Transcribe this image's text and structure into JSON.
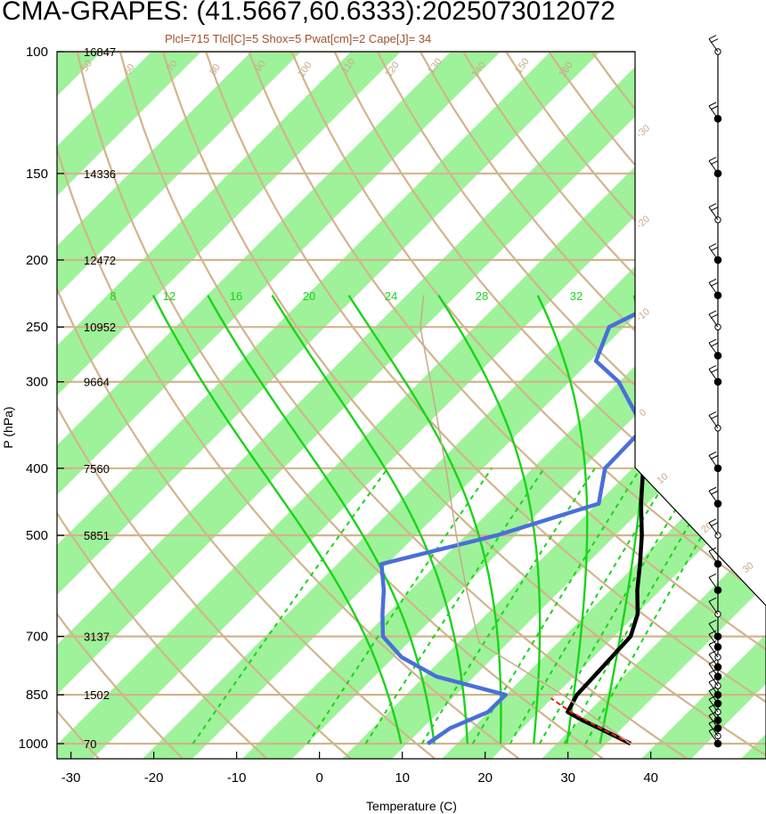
{
  "title": "CMA-GRAPES: (41.5667,60.6333):2025073012072",
  "subtitle": "Plcl=715 Tlcl[C]=5 Shox=5 Pwat[cm]=2 Cape[J]= 34",
  "chart_data": {
    "type": "skew-t log-p",
    "xlabel": "Temperature (C)",
    "ylabel": "P (hPa)",
    "xlim": [
      -33,
      52
    ],
    "ylim": [
      1050,
      100
    ],
    "y_scale": "log",
    "x_ticks": [
      "-30",
      "-20",
      "-10",
      "0",
      "10",
      "20",
      "30",
      "40"
    ],
    "pressure_levels": [
      {
        "p": 100,
        "label": "100",
        "height": "16847"
      },
      {
        "p": 150,
        "label": "150",
        "height": "14336"
      },
      {
        "p": 200,
        "label": "200",
        "height": "12472"
      },
      {
        "p": 250,
        "label": "250",
        "height": "10952"
      },
      {
        "p": 300,
        "label": "300",
        "height": "9664"
      },
      {
        "p": 400,
        "label": "400",
        "height": "7560"
      },
      {
        "p": 500,
        "label": "500",
        "height": "5851"
      },
      {
        "p": 700,
        "label": "700",
        "height": "3137"
      },
      {
        "p": 850,
        "label": "850",
        "height": "1502"
      },
      {
        "p": 1000,
        "label": "1000",
        "height": "70"
      }
    ],
    "series": [
      {
        "name": "",
        "color": "#000000",
        "points": [
          [
            1000,
            35.7
          ],
          [
            950,
            30.0
          ],
          [
            925,
            27.0
          ],
          [
            900,
            24.2
          ],
          [
            850,
            23.2
          ],
          [
            800,
            23.0
          ],
          [
            700,
            22.5
          ],
          [
            650,
            20.6
          ],
          [
            600,
            17.6
          ],
          [
            550,
            14.7
          ],
          [
            500,
            11.4
          ],
          [
            450,
            7.4
          ],
          [
            400,
            3.3
          ],
          [
            350,
            0.0
          ],
          [
            300,
            -3.1
          ],
          [
            275,
            -5.0
          ],
          [
            250,
            -7.2
          ],
          [
            225,
            -10.4
          ],
          [
            200,
            -14.3
          ],
          [
            175,
            -17.1
          ],
          [
            150,
            -19.2
          ],
          [
            125,
            -15.1
          ],
          [
            100,
            -11.2
          ]
        ]
      },
      {
        "name": "",
        "color": "#4a6fd8",
        "points": [
          [
            1000,
            11.2
          ],
          [
            950,
            12.0
          ],
          [
            900,
            14.6
          ],
          [
            850,
            14.6
          ],
          [
            800,
            4.0
          ],
          [
            750,
            -2.6
          ],
          [
            700,
            -7.4
          ],
          [
            650,
            -10.2
          ],
          [
            600,
            -13.0
          ],
          [
            550,
            -16.5
          ],
          [
            500,
            -6.1
          ],
          [
            450,
            2.3
          ],
          [
            400,
            -1.3
          ],
          [
            350,
            -1.6
          ],
          [
            300,
            -10.3
          ],
          [
            280,
            -15.6
          ],
          [
            250,
            -18.2
          ],
          [
            225,
            -14.4
          ],
          [
            200,
            -17.0
          ],
          [
            175,
            -21.3
          ],
          [
            150,
            -24.3
          ],
          [
            125,
            -22.6
          ],
          [
            100,
            -15.1
          ]
        ]
      },
      {
        "name": "",
        "color": "#e0201a",
        "dashed": true,
        "points": [
          [
            1000,
            35.7
          ],
          [
            950,
            30.2
          ],
          [
            900,
            24.6
          ],
          [
            860,
            20.5
          ]
        ]
      },
      {
        "name": "",
        "color": "#c9a98a",
        "thin": true,
        "points": [
          [
            1000,
            35.7
          ],
          [
            850,
            21.5
          ],
          [
            715,
            5.0
          ],
          [
            600,
            -3.0
          ],
          [
            500,
            -11.0
          ],
          [
            400,
            -20.5
          ],
          [
            300,
            -33.0
          ],
          [
            250,
            -41.0
          ],
          [
            225,
            -44.5
          ]
        ]
      }
    ],
    "mixing_ratio_labels": [
      "8",
      "12",
      "16",
      "20",
      "24",
      "28",
      "32"
    ],
    "dry_adiabat_labels": [
      "50",
      "60",
      "70",
      "80",
      "90",
      "100",
      "110",
      "120",
      "130",
      "140",
      "150",
      "160"
    ],
    "side_temperature_labels": [
      "-30",
      "-20",
      "-10",
      "0",
      "10",
      "20",
      "30"
    ],
    "wind_barbs_levels": [
      100,
      125,
      150,
      175,
      200,
      225,
      250,
      275,
      300,
      350,
      400,
      450,
      500,
      550,
      600,
      650,
      700,
      725,
      750,
      775,
      800,
      825,
      850,
      875,
      900,
      925,
      950,
      975,
      1000
    ]
  }
}
